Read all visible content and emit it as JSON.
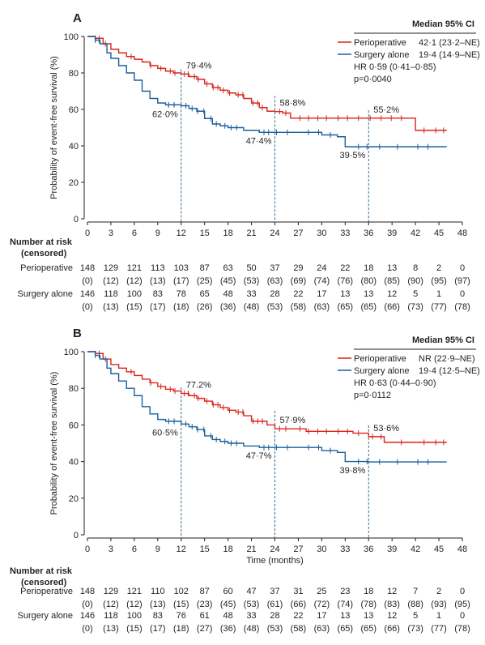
{
  "colors": {
    "perioperative": "#d9261c",
    "surgery_alone": "#1a5f9e",
    "guide": "#1c5a86",
    "text": "#231f20"
  },
  "chart_data": [
    {
      "type": "line",
      "panel_label": "A",
      "ylabel": "Probability of event-free survival (%)",
      "xlabel": "",
      "xlim": [
        0,
        48
      ],
      "ylim": [
        0,
        100
      ],
      "x_ticks": [
        "0",
        "3",
        "6",
        "9",
        "12",
        "15",
        "18",
        "21",
        "24",
        "27",
        "30",
        "33",
        "36",
        "39",
        "42",
        "45",
        "48"
      ],
      "y_ticks": [
        "0",
        "20",
        "40",
        "60",
        "80",
        "100"
      ],
      "legend": {
        "header": "Median 95% CI",
        "rows": [
          {
            "name": "Perioperative",
            "value": "42·1 (23·2–NE)"
          },
          {
            "name": "Surgery alone",
            "value": "19·4 (14·9–NE)"
          }
        ],
        "hr": "HR 0·59 (0·41–0·85)",
        "p": "p=0·0040"
      },
      "series": [
        {
          "name": "Perioperative",
          "color_key": "perioperative",
          "points": [
            [
              0,
              100
            ],
            [
              1,
              99
            ],
            [
              2,
              96
            ],
            [
              3,
              93
            ],
            [
              4,
              91
            ],
            [
              5,
              89
            ],
            [
              6,
              87.5
            ],
            [
              7,
              86
            ],
            [
              8,
              84
            ],
            [
              9,
              82.5
            ],
            [
              10,
              81
            ],
            [
              11,
              80
            ],
            [
              12,
              79.4
            ],
            [
              13,
              78
            ],
            [
              14,
              76.5
            ],
            [
              15,
              74
            ],
            [
              16,
              72
            ],
            [
              17,
              70.5
            ],
            [
              18,
              69
            ],
            [
              19,
              68
            ],
            [
              20,
              66
            ],
            [
              21,
              63.5
            ],
            [
              22,
              61
            ],
            [
              23,
              59
            ],
            [
              24,
              58.8
            ],
            [
              25,
              58
            ],
            [
              26,
              55.2
            ],
            [
              36,
              55.2
            ],
            [
              42,
              55.2
            ],
            [
              42,
              48.5
            ],
            [
              46,
              48.5
            ]
          ],
          "censor_x": [
            1,
            1.5,
            2.3,
            5.6,
            8.1,
            9.4,
            10.6,
            11.2,
            12.4,
            12.9,
            13.7,
            14.2,
            15.3,
            16.1,
            16.7,
            17.4,
            18.2,
            19.3,
            19.9,
            21.2,
            21.8,
            22.4,
            24.6,
            25.4,
            27.2,
            28.3,
            29.5,
            30.6,
            32.1,
            33.3,
            34.7,
            36.2,
            37.6,
            38.9,
            40.2,
            43.1,
            44.6,
            45.6
          ]
        },
        {
          "name": "Surgery alone",
          "color_key": "surgery_alone",
          "points": [
            [
              0,
              100
            ],
            [
              1,
              98
            ],
            [
              1.6,
              96
            ],
            [
              2.5,
              91
            ],
            [
              3,
              88
            ],
            [
              4,
              84
            ],
            [
              5,
              80
            ],
            [
              6,
              76
            ],
            [
              7,
              70
            ],
            [
              8,
              66
            ],
            [
              9,
              63.5
            ],
            [
              10,
              62.5
            ],
            [
              12,
              62
            ],
            [
              13,
              60.5
            ],
            [
              14,
              59
            ],
            [
              15,
              55
            ],
            [
              16,
              52
            ],
            [
              17,
              51
            ],
            [
              18,
              50
            ],
            [
              20,
              48.5
            ],
            [
              22,
              47.4
            ],
            [
              27,
              47.4
            ],
            [
              30,
              46
            ],
            [
              32,
              45
            ],
            [
              33,
              39.5
            ],
            [
              36,
              39.5
            ],
            [
              46,
              39.5
            ]
          ],
          "censor_x": [
            1,
            1.5,
            10.4,
            11.1,
            12.6,
            13.4,
            14.1,
            14.9,
            15.8,
            16.5,
            17.6,
            18.4,
            19.1,
            22.6,
            23.2,
            24.2,
            25.6,
            28.3,
            29.6,
            31.1,
            34.7,
            35.8,
            37.4,
            39.7,
            42.3,
            43.6
          ]
        }
      ],
      "annotations": [
        {
          "label": "79·4%",
          "x": 12,
          "y": 79.4,
          "series": "Perioperative"
        },
        {
          "label": "62·0%",
          "x": 12,
          "y": 62.0,
          "series": "Surgery alone"
        },
        {
          "label": "58·8%",
          "x": 24,
          "y": 58.8,
          "series": "Perioperative"
        },
        {
          "label": "47·4%",
          "x": 24,
          "y": 47.4,
          "series": "Surgery alone"
        },
        {
          "label": "55·2%",
          "x": 36,
          "y": 55.2,
          "series": "Perioperative"
        },
        {
          "label": "39·5%",
          "x": 36,
          "y": 39.5,
          "series": "Surgery alone"
        }
      ],
      "risk_table": {
        "title": "Number at risk",
        "subtitle": "(censored)",
        "rows": [
          {
            "label": "Perioperative",
            "at_risk": [
              "148",
              "129",
              "121",
              "113",
              "103",
              "87",
              "63",
              "50",
              "37",
              "29",
              "24",
              "22",
              "18",
              "13",
              "8",
              "2",
              "0"
            ],
            "censored": [
              "(0)",
              "(12)",
              "(12)",
              "(13)",
              "(17)",
              "(25)",
              "(45)",
              "(53)",
              "(63)",
              "(69)",
              "(74)",
              "(76)",
              "(80)",
              "(85)",
              "(90)",
              "(95)",
              "(97)"
            ]
          },
          {
            "label": "Surgery alone",
            "at_risk": [
              "146",
              "118",
              "100",
              "83",
              "78",
              "65",
              "48",
              "33",
              "28",
              "22",
              "17",
              "13",
              "13",
              "12",
              "5",
              "1",
              "0"
            ],
            "censored": [
              "(0)",
              "(13)",
              "(15)",
              "(17)",
              "(18)",
              "(26)",
              "(36)",
              "(48)",
              "(53)",
              "(58)",
              "(63)",
              "(65)",
              "(65)",
              "(66)",
              "(73)",
              "(77)",
              "(78)"
            ]
          }
        ]
      }
    },
    {
      "type": "line",
      "panel_label": "B",
      "ylabel": "Probability of event-free survival (%)",
      "xlabel": "Time (months)",
      "xlim": [
        0,
        48
      ],
      "ylim": [
        0,
        100
      ],
      "x_ticks": [
        "0",
        "3",
        "6",
        "9",
        "12",
        "15",
        "18",
        "21",
        "24",
        "27",
        "30",
        "33",
        "36",
        "39",
        "42",
        "45",
        "48"
      ],
      "y_ticks": [
        "0",
        "20",
        "40",
        "60",
        "80",
        "100"
      ],
      "legend": {
        "header": "Median 95% CI",
        "rows": [
          {
            "name": "Perioperative",
            "value": "NR (22·9–NE)"
          },
          {
            "name": "Surgery alone",
            "value": "19·4 (12·5–NE)"
          }
        ],
        "hr": "HR 0·63 (0·44–0·90)",
        "p": "p=0·0112"
      },
      "series": [
        {
          "name": "Perioperative",
          "color_key": "perioperative",
          "points": [
            [
              0,
              100
            ],
            [
              1,
              99
            ],
            [
              2,
              96
            ],
            [
              3,
              93
            ],
            [
              4,
              91
            ],
            [
              5,
              89
            ],
            [
              6,
              87
            ],
            [
              7,
              85
            ],
            [
              8,
              83
            ],
            [
              9,
              81
            ],
            [
              10,
              79.5
            ],
            [
              11,
              78.5
            ],
            [
              12,
              77.2
            ],
            [
              13,
              76
            ],
            [
              14,
              74.5
            ],
            [
              15,
              73
            ],
            [
              16,
              71
            ],
            [
              17,
              69.5
            ],
            [
              18,
              68
            ],
            [
              19,
              67
            ],
            [
              20,
              65
            ],
            [
              21,
              62
            ],
            [
              23,
              60
            ],
            [
              24,
              57.9
            ],
            [
              26,
              57.9
            ],
            [
              28,
              56.5
            ],
            [
              34,
              55.5
            ],
            [
              36,
              53.6
            ],
            [
              37,
              53.6
            ],
            [
              38,
              50.5
            ],
            [
              46,
              50.5
            ]
          ],
          "censor_x": [
            1,
            1.5,
            2.3,
            5.6,
            8.1,
            9.4,
            10.6,
            11.2,
            12.4,
            12.9,
            13.7,
            14.2,
            15.3,
            16.1,
            16.7,
            17.4,
            18.2,
            19.3,
            19.9,
            21.2,
            21.8,
            22.4,
            24.6,
            25.4,
            27.2,
            28.3,
            29.5,
            30.6,
            32.1,
            33.3,
            34.7,
            36.5,
            37.6,
            40.2,
            43.1,
            44.6,
            45.6
          ]
        },
        {
          "name": "Surgery alone",
          "color_key": "surgery_alone",
          "points": [
            [
              0,
              100
            ],
            [
              1,
              98
            ],
            [
              1.6,
              96
            ],
            [
              2.5,
              91
            ],
            [
              3,
              88
            ],
            [
              4,
              84
            ],
            [
              5,
              80
            ],
            [
              6,
              76
            ],
            [
              7,
              70
            ],
            [
              8,
              66
            ],
            [
              9,
              63
            ],
            [
              10,
              62
            ],
            [
              12,
              60.5
            ],
            [
              13,
              59
            ],
            [
              14,
              57.5
            ],
            [
              15,
              54
            ],
            [
              16,
              52
            ],
            [
              17,
              51
            ],
            [
              18,
              50
            ],
            [
              20,
              48.5
            ],
            [
              22,
              47.7
            ],
            [
              27,
              47.7
            ],
            [
              30,
              46
            ],
            [
              32,
              45
            ],
            [
              33,
              40
            ],
            [
              36,
              39.8
            ],
            [
              46,
              39.8
            ]
          ],
          "censor_x": [
            1,
            1.5,
            10.4,
            11.1,
            12.6,
            13.4,
            14.1,
            14.9,
            15.8,
            16.5,
            17.6,
            18.4,
            19.1,
            22.6,
            23.2,
            24.2,
            25.6,
            28.3,
            29.6,
            31.1,
            34.7,
            35.8,
            37.4,
            39.7,
            42.3,
            43.6
          ]
        }
      ],
      "annotations": [
        {
          "label": "77.2%",
          "x": 12,
          "y": 77.2,
          "series": "Perioperative"
        },
        {
          "label": "60·5%",
          "x": 12,
          "y": 60.5,
          "series": "Surgery alone"
        },
        {
          "label": "57·9%",
          "x": 24,
          "y": 57.9,
          "series": "Perioperative"
        },
        {
          "label": "47·7%",
          "x": 24,
          "y": 47.7,
          "series": "Surgery alone"
        },
        {
          "label": "53·6%",
          "x": 36,
          "y": 53.6,
          "series": "Perioperative"
        },
        {
          "label": "39·8%",
          "x": 36,
          "y": 39.8,
          "series": "Surgery alone"
        }
      ],
      "risk_table": {
        "title": "Number at risk",
        "subtitle": "(censored)",
        "rows": [
          {
            "label": "Perioperative",
            "at_risk": [
              "148",
              "129",
              "121",
              "110",
              "102",
              "87",
              "60",
              "47",
              "37",
              "31",
              "25",
              "23",
              "18",
              "12",
              "7",
              "2",
              "0"
            ],
            "censored": [
              "(0)",
              "(12)",
              "(12)",
              "(13)",
              "(15)",
              "(23)",
              "(45)",
              "(53)",
              "(61)",
              "(66)",
              "(72)",
              "(74)",
              "(78)",
              "(83)",
              "(88)",
              "(93)",
              "(95)"
            ]
          },
          {
            "label": "Surgery alone",
            "at_risk": [
              "146",
              "118",
              "100",
              "83",
              "76",
              "61",
              "48",
              "33",
              "28",
              "22",
              "17",
              "13",
              "13",
              "12",
              "5",
              "1",
              "0"
            ],
            "censored": [
              "(0)",
              "(13)",
              "(15)",
              "(17)",
              "(18)",
              "(27)",
              "(36)",
              "(48)",
              "(53)",
              "(58)",
              "(63)",
              "(65)",
              "(65)",
              "(66)",
              "(73)",
              "(77)",
              "(78)"
            ]
          }
        ]
      }
    }
  ]
}
